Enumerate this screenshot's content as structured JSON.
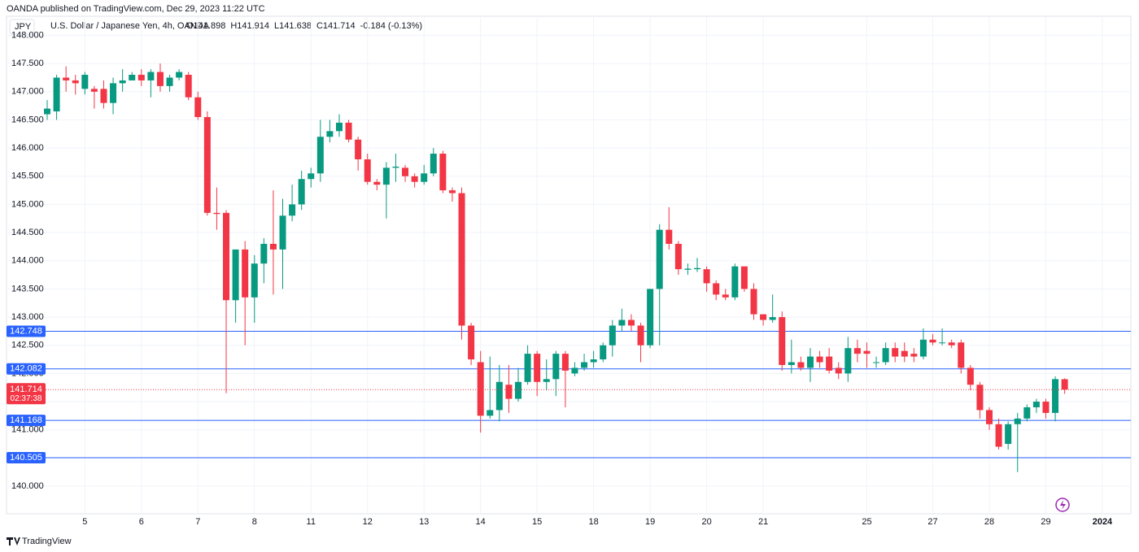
{
  "header": {
    "published": "OANDA published on TradingView.com, Dec 29, 2023 11:22 UTC",
    "symbol": "JPY",
    "name": "U.S. Dollar / Japanese Yen, 4h, OANDA",
    "legend": [
      "O141.898",
      "H141.914",
      "L141.638",
      "C141.714",
      "-0.184 (-0.13%)"
    ]
  },
  "footer": {
    "brand": "TradingView"
  },
  "chart_data": {
    "type": "candlestick",
    "categories": [
      null,
      null,
      null,
      null,
      "5",
      null,
      null,
      null,
      null,
      null,
      "6",
      null,
      null,
      null,
      null,
      null,
      "7",
      null,
      null,
      null,
      null,
      null,
      "8",
      null,
      null,
      null,
      null,
      null,
      "11",
      null,
      null,
      null,
      null,
      null,
      "12",
      null,
      null,
      null,
      null,
      null,
      "13",
      null,
      null,
      null,
      null,
      null,
      "14",
      null,
      null,
      null,
      null,
      null,
      "15",
      null,
      null,
      null,
      null,
      null,
      "18",
      null,
      null,
      null,
      null,
      null,
      "19",
      null,
      null,
      null,
      null,
      null,
      "20",
      null,
      null,
      null,
      null,
      null,
      "21",
      null,
      null,
      null,
      null,
      null,
      null,
      null,
      null,
      null,
      null,
      "25",
      null,
      null,
      null,
      null,
      null,
      null,
      "27",
      null,
      null,
      null,
      null,
      null,
      "28",
      null,
      null,
      null,
      null,
      null,
      "29",
      null,
      null,
      null,
      null,
      null,
      "2024"
    ],
    "open": [
      146.6,
      146.65,
      147.25,
      147.2,
      147.05,
      147.05,
      147.05,
      146.8,
      147.15,
      147.2,
      147.3,
      147.2,
      147.35,
      147.1,
      147.25,
      147.3,
      146.9,
      146.55,
      144.85,
      144.85,
      143.3,
      144.2,
      143.35,
      143.95,
      144.3,
      144.2,
      144.8,
      145.0,
      145.45,
      145.55,
      146.2,
      146.3,
      146.45,
      146.15,
      145.8,
      145.4,
      145.35,
      145.65,
      145.65,
      145.5,
      145.4,
      145.55,
      145.9,
      145.25,
      145.2,
      142.85,
      142.2,
      141.25,
      141.35,
      141.8,
      141.55,
      141.85,
      142.35,
      141.85,
      141.9,
      142.35,
      142.0,
      142.1,
      142.2,
      142.25,
      142.5,
      142.85,
      142.95,
      142.85,
      142.5,
      143.5,
      144.55,
      144.3,
      143.84,
      143.85,
      143.85,
      143.6,
      143.4,
      143.35,
      143.9,
      143.5,
      143.05,
      142.95,
      143.0,
      142.15,
      142.2,
      142.1,
      142.3,
      142.3,
      142.1,
      142.0,
      142.45,
      142.4,
      142.19,
      142.2,
      142.45,
      142.4,
      142.35,
      142.3,
      142.6,
      142.54,
      142.55,
      142.55,
      142.1,
      141.8,
      141.35,
      141.1,
      140.75,
      141.1,
      141.2,
      141.4,
      141.5,
      141.3,
      141.898,
      null,
      null,
      null,
      null
    ],
    "high": [
      146.85,
      147.3,
      147.45,
      147.3,
      147.35,
      147.1,
      147.2,
      147.25,
      147.4,
      147.35,
      147.4,
      147.4,
      147.5,
      147.3,
      147.4,
      147.35,
      147.0,
      146.65,
      145.3,
      144.9,
      144.2,
      144.35,
      144.1,
      144.4,
      145.25,
      145.1,
      145.35,
      145.6,
      145.65,
      146.5,
      146.5,
      146.6,
      146.5,
      146.2,
      145.9,
      145.45,
      145.75,
      145.9,
      145.7,
      145.55,
      145.7,
      146.0,
      145.95,
      145.3,
      145.3,
      142.9,
      142.4,
      142.3,
      142.15,
      142.15,
      142.1,
      142.5,
      142.4,
      142.25,
      142.4,
      142.4,
      142.2,
      142.35,
      142.4,
      142.55,
      142.95,
      143.15,
      143.05,
      142.9,
      143.5,
      144.65,
      144.95,
      144.35,
      143.95,
      144.05,
      143.9,
      143.65,
      143.5,
      143.95,
      143.9,
      143.6,
      143.05,
      143.4,
      143.1,
      142.6,
      142.3,
      142.45,
      142.4,
      142.45,
      142.2,
      142.65,
      142.6,
      142.55,
      142.3,
      142.55,
      142.55,
      142.55,
      142.45,
      142.8,
      142.7,
      142.8,
      142.6,
      142.6,
      142.15,
      141.85,
      141.4,
      141.2,
      141.15,
      141.3,
      141.45,
      141.55,
      141.55,
      141.95,
      141.914,
      null,
      null,
      null,
      null
    ],
    "low": [
      146.5,
      146.5,
      147.0,
      146.95,
      146.95,
      146.7,
      146.7,
      146.6,
      147.0,
      147.2,
      147.1,
      146.9,
      147.0,
      147.0,
      147.2,
      146.85,
      146.5,
      144.8,
      144.55,
      141.65,
      142.9,
      142.5,
      142.9,
      143.6,
      143.4,
      143.5,
      144.7,
      144.9,
      145.3,
      145.4,
      146.1,
      146.2,
      146.1,
      145.6,
      145.35,
      145.25,
      144.75,
      145.4,
      145.4,
      145.3,
      145.35,
      145.5,
      145.2,
      145.05,
      142.6,
      142.15,
      140.95,
      141.2,
      141.15,
      141.3,
      141.5,
      141.8,
      141.6,
      141.7,
      141.6,
      141.4,
      141.95,
      142.05,
      142.1,
      142.2,
      142.3,
      142.75,
      142.75,
      142.2,
      142.45,
      142.5,
      144.2,
      143.75,
      143.75,
      143.8,
      143.45,
      143.3,
      143.3,
      143.3,
      143.45,
      142.95,
      142.85,
      142.9,
      142.05,
      142.0,
      142.05,
      141.85,
      142.1,
      142.0,
      141.9,
      141.85,
      142.2,
      142.1,
      142.1,
      142.15,
      142.2,
      142.2,
      142.2,
      142.25,
      142.5,
      142.5,
      142.45,
      142.0,
      141.7,
      141.2,
      141.0,
      140.65,
      140.65,
      140.25,
      141.15,
      141.3,
      141.2,
      141.15,
      141.638,
      null,
      null,
      null,
      null
    ],
    "close": [
      146.7,
      147.25,
      147.2,
      147.15,
      147.3,
      147.0,
      146.8,
      147.15,
      147.2,
      147.3,
      147.2,
      147.35,
      147.1,
      147.25,
      147.35,
      146.9,
      146.55,
      144.85,
      144.83,
      143.3,
      144.2,
      143.35,
      143.95,
      144.3,
      144.2,
      144.8,
      145.0,
      145.45,
      145.55,
      146.2,
      146.3,
      146.45,
      146.15,
      145.8,
      145.4,
      145.35,
      145.65,
      145.67,
      145.5,
      145.4,
      145.55,
      145.9,
      145.25,
      145.2,
      142.85,
      142.25,
      141.25,
      141.35,
      141.85,
      141.55,
      141.85,
      142.35,
      141.85,
      141.9,
      142.35,
      142.05,
      142.1,
      142.2,
      142.25,
      142.5,
      142.85,
      142.95,
      142.85,
      142.5,
      143.5,
      144.55,
      144.3,
      143.85,
      143.86,
      143.87,
      143.6,
      143.4,
      143.35,
      143.9,
      143.5,
      143.05,
      142.95,
      143.0,
      142.15,
      142.2,
      142.1,
      142.3,
      142.2,
      142.05,
      142.0,
      142.45,
      142.35,
      142.35,
      142.2,
      142.45,
      142.3,
      142.3,
      142.3,
      142.6,
      142.55,
      142.55,
      142.5,
      142.1,
      141.8,
      141.35,
      141.1,
      140.7,
      141.1,
      141.2,
      141.4,
      141.5,
      141.3,
      141.9,
      141.714,
      null,
      null,
      null,
      null
    ],
    "ylim": [
      139.51,
      148.05
    ],
    "yticks": [
      {
        "value": 140,
        "label": "140.000"
      },
      {
        "value": 140.5,
        "label": "140.500"
      },
      {
        "value": 141,
        "label": "141.000"
      },
      {
        "value": 141.5,
        "label": "141.500"
      },
      {
        "value": 142,
        "label": "142.000"
      },
      {
        "value": 142.5,
        "label": "142.500"
      },
      {
        "value": 143,
        "label": "143.000"
      },
      {
        "value": 143.5,
        "label": "143.500"
      },
      {
        "value": 144,
        "label": "144.000"
      },
      {
        "value": 144.5,
        "label": "144.500"
      },
      {
        "value": 145,
        "label": "145.000"
      },
      {
        "value": 145.5,
        "label": "145.500"
      },
      {
        "value": 146,
        "label": "146.000"
      },
      {
        "value": 146.5,
        "label": "146.500"
      },
      {
        "value": 147,
        "label": "147.000"
      },
      {
        "value": 147.5,
        "label": "147.500"
      },
      {
        "value": 148,
        "label": "148.000"
      }
    ],
    "hlines": [
      142.748,
      142.082,
      141.168,
      140.505
    ],
    "last_price": 141.714,
    "countdown": "02:37:38",
    "grid": true,
    "colors": {
      "up": "#089981",
      "down": "#f23645",
      "hline": "#2962ff",
      "last": "#f23645"
    }
  }
}
